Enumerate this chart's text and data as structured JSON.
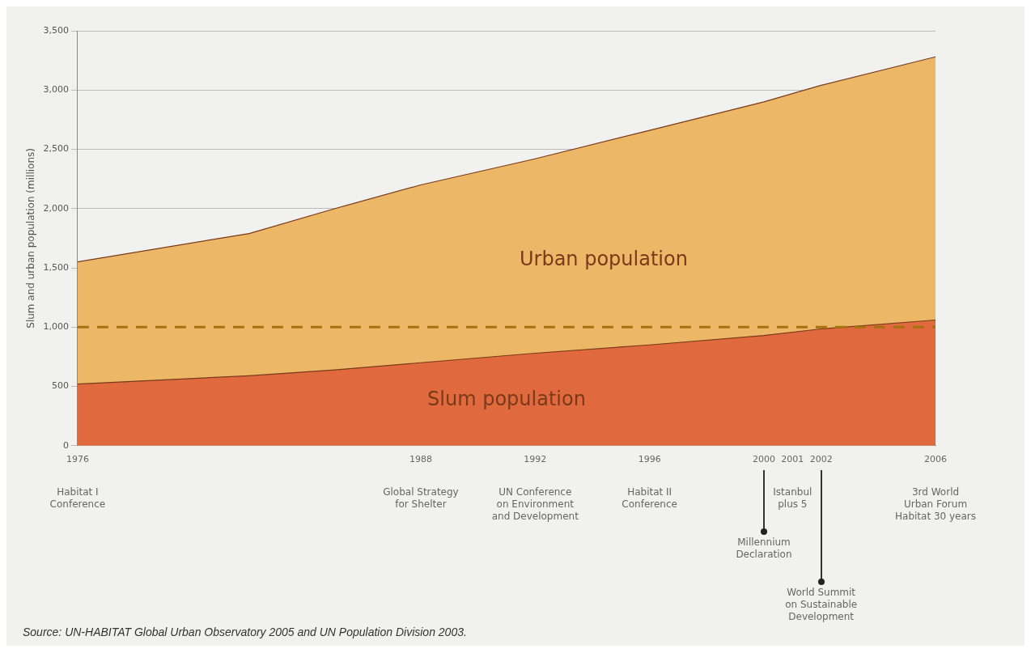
{
  "chart_data": {
    "type": "area",
    "ylabel": "Slum and urban population (millions)",
    "x": [
      1976,
      1982,
      1985,
      1988,
      1992,
      1996,
      2000,
      2002,
      2006
    ],
    "series": [
      {
        "name": "Urban population",
        "color": "#ecb766",
        "values": [
          1550,
          1790,
          2000,
          2200,
          2420,
          2660,
          2900,
          3040,
          3280
        ]
      },
      {
        "name": "Slum population",
        "color": "#e06a3e",
        "values": [
          520,
          590,
          640,
          700,
          780,
          850,
          930,
          985,
          1060
        ]
      }
    ],
    "xlim": [
      1976,
      2006
    ],
    "xticks": [
      1976,
      1988,
      1992,
      1996,
      2000,
      2001,
      2002,
      2006
    ],
    "ylim": [
      0,
      3500
    ],
    "yticks": [
      0,
      {
        "value": 500,
        "label": "500"
      },
      {
        "value": 1000,
        "label": "1,000"
      },
      {
        "value": 1500,
        "label": "1,500"
      },
      {
        "value": 2000,
        "label": "2,000"
      },
      {
        "value": 2500,
        "label": "2,500"
      },
      {
        "value": 3000,
        "label": "3,000"
      },
      {
        "value": 3500,
        "label": "3,500"
      }
    ],
    "grid": "y",
    "marker": "none",
    "ref_lines": [
      {
        "axis": "y",
        "value": 1000,
        "color": "#a8700e",
        "line_style": "dashed"
      }
    ],
    "annotations": [
      "Habitat I\nConference",
      "Global Strategy\nfor Shelter",
      "UN Conference\non Environment\nand Development",
      "Habitat II\nConference",
      "Millennium\nDeclaration",
      "Istanbul\nplus 5",
      "World Summit\non Sustainable\nDevelopment",
      "3rd World\nUrban Forum\nHabitat 30 years",
      "Source: UN-HABITAT Global Urban Observatory 2005 and UN Population Division 2003."
    ]
  }
}
